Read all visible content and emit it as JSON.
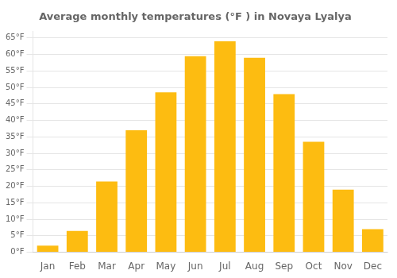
{
  "chart_data": {
    "type": "bar",
    "title": "Average monthly temperatures (°F ) in Novaya Lyalya",
    "categories": [
      "Jan",
      "Feb",
      "Mar",
      "Apr",
      "May",
      "Jun",
      "Jul",
      "Aug",
      "Sep",
      "Oct",
      "Nov",
      "Dec"
    ],
    "values": [
      2,
      6.5,
      21.5,
      37,
      48.5,
      59.5,
      64,
      59,
      48,
      33.5,
      19,
      7
    ],
    "color": "#FDBC11",
    "ylim": [
      0,
      67
    ],
    "yticks": [
      {
        "value": 0,
        "label": "0°F"
      },
      {
        "value": 5,
        "label": "5°F"
      },
      {
        "value": 10,
        "label": "10°F"
      },
      {
        "value": 15,
        "label": "15°F"
      },
      {
        "value": 20,
        "label": "20°F"
      },
      {
        "value": 25,
        "label": "25°F"
      },
      {
        "value": 30,
        "label": "30°F"
      },
      {
        "value": 35,
        "label": "35°F"
      },
      {
        "value": 40,
        "label": "40°F"
      },
      {
        "value": 45,
        "label": "45°F"
      },
      {
        "value": 50,
        "label": "50°F"
      },
      {
        "value": 55,
        "label": "55°F"
      },
      {
        "value": 60,
        "label": "60°F"
      },
      {
        "value": 65,
        "label": "65°F"
      }
    ],
    "grid": true
  }
}
